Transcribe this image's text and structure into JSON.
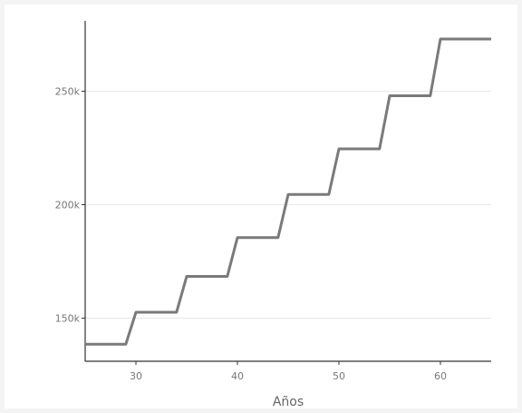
{
  "chart_data": {
    "type": "line",
    "step": true,
    "title": "",
    "xlabel": "Años",
    "ylabel": "",
    "xlim": [
      25,
      65
    ],
    "ylim": [
      131000,
      281000
    ],
    "x_ticks": [
      30,
      40,
      50,
      60
    ],
    "y_ticks": [
      150000,
      200000,
      250000
    ],
    "y_tick_labels": [
      "150k",
      "200k",
      "250k"
    ],
    "grid": "horizontal",
    "series": [
      {
        "color": "#7a7a7a",
        "points": [
          [
            25,
            138500
          ],
          [
            29,
            138500
          ],
          [
            30,
            152600
          ],
          [
            34,
            152600
          ],
          [
            35,
            168400
          ],
          [
            39,
            168400
          ],
          [
            40,
            185500
          ],
          [
            44,
            185500
          ],
          [
            45,
            204500
          ],
          [
            49,
            204500
          ],
          [
            50,
            224600
          ],
          [
            54,
            224600
          ],
          [
            55,
            248000
          ],
          [
            59,
            248000
          ],
          [
            60,
            273000
          ],
          [
            65,
            273000
          ]
        ]
      }
    ]
  }
}
